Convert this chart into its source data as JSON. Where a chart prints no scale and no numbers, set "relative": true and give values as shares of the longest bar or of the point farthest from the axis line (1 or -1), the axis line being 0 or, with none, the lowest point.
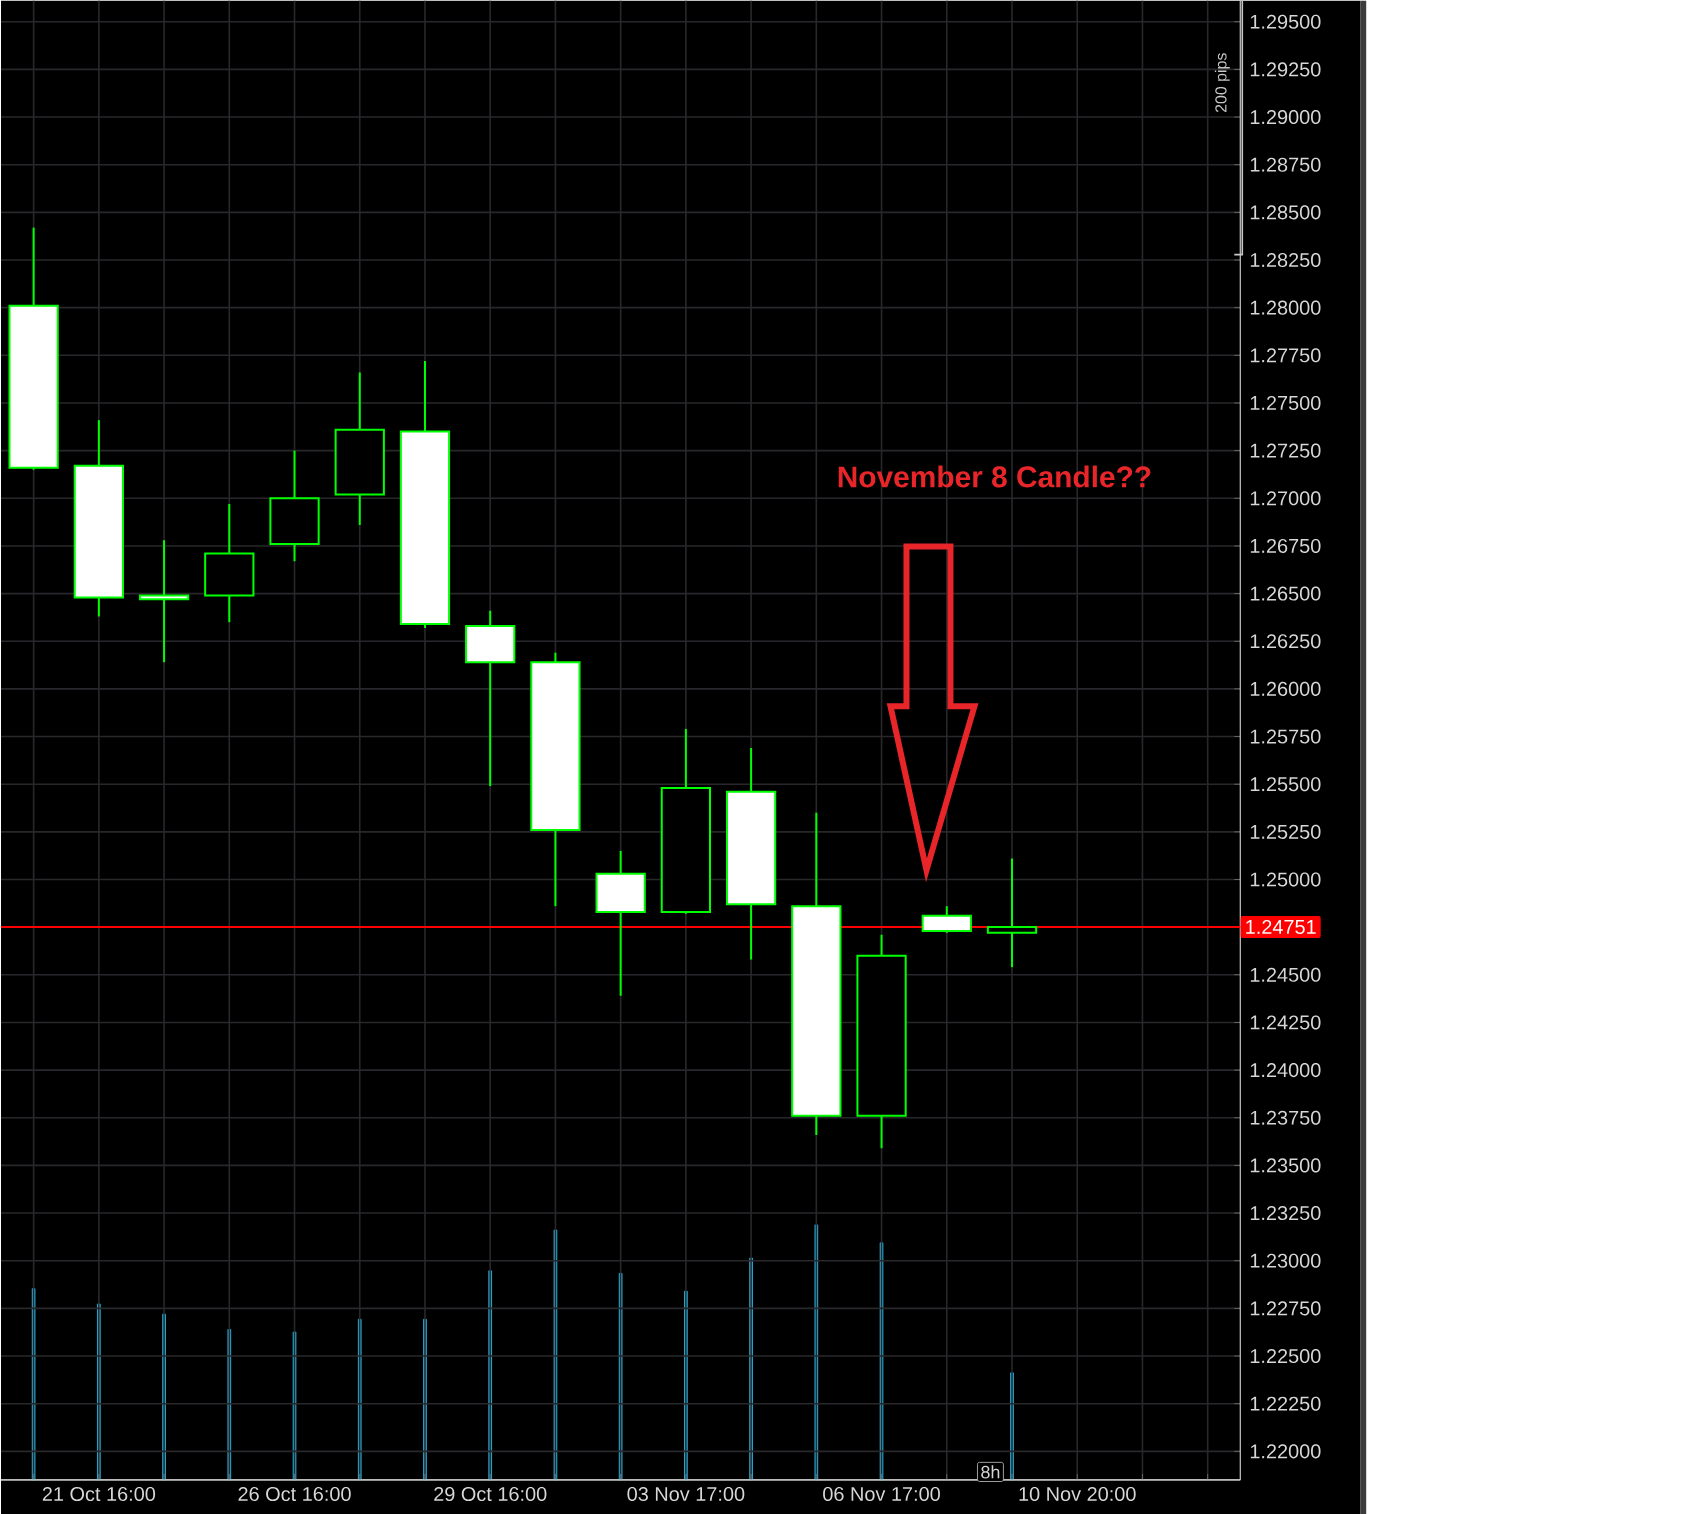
{
  "chart_data": [
    {
      "type": "candlestick",
      "categories": [
        null,
        "21 Oct 16:00",
        null,
        null,
        "26 Oct 16:00",
        null,
        null,
        "29 Oct 16:00",
        null,
        null,
        "03 Nov 17:00",
        null,
        null,
        "06 Nov 17:00",
        null,
        null,
        "10 Nov 20:00",
        null,
        null
      ],
      "ohlc": [
        [
          1.2801,
          1.2842,
          1.2715,
          1.2716
        ],
        [
          1.2717,
          1.2741,
          1.2638,
          1.2648
        ],
        [
          1.2649,
          1.2678,
          1.2614,
          1.2647
        ],
        [
          1.2649,
          1.2697,
          1.2635,
          1.2671
        ],
        [
          1.2676,
          1.2725,
          1.2667,
          1.27
        ],
        [
          1.2702,
          1.2766,
          1.2686,
          1.2736
        ],
        [
          1.2735,
          1.2772,
          1.2632,
          1.2634
        ],
        [
          1.2633,
          1.2641,
          1.2549,
          1.2614
        ],
        [
          1.2614,
          1.2619,
          1.2486,
          1.2526
        ],
        [
          1.2503,
          1.2515,
          1.2439,
          1.2483
        ],
        [
          1.2483,
          1.2579,
          1.2482,
          1.2548
        ],
        [
          1.2546,
          1.2569,
          1.2458,
          1.2487
        ],
        [
          1.2486,
          1.2535,
          1.2366,
          1.2376
        ],
        [
          1.2376,
          1.2471,
          1.2359,
          1.246
        ],
        [
          1.2481,
          1.2486,
          1.2472,
          1.2473
        ],
        [
          1.2472,
          1.2511,
          1.2454,
          1.24751
        ],
        null,
        null,
        null
      ],
      "color": "#00ff00",
      "ylim": [
        1.2185,
        1.2961
      ],
      "yticks": [
        {
          "value": 1.22,
          "label": "1.22000"
        },
        {
          "value": 1.2225,
          "label": "1.22250"
        },
        {
          "value": 1.225,
          "label": "1.22500"
        },
        {
          "value": 1.2275,
          "label": "1.22750"
        },
        {
          "value": 1.23,
          "label": "1.23000"
        },
        {
          "value": 1.2325,
          "label": "1.23250"
        },
        {
          "value": 1.235,
          "label": "1.23500"
        },
        {
          "value": 1.2375,
          "label": "1.23750"
        },
        {
          "value": 1.24,
          "label": "1.24000"
        },
        {
          "value": 1.2425,
          "label": "1.24250"
        },
        {
          "value": 1.245,
          "label": "1.24500"
        },
        {
          "value": 1.2475,
          "label": null
        },
        {
          "value": 1.25,
          "label": "1.25000"
        },
        {
          "value": 1.2525,
          "label": "1.25250"
        },
        {
          "value": 1.255,
          "label": "1.25500"
        },
        {
          "value": 1.2575,
          "label": "1.25750"
        },
        {
          "value": 1.26,
          "label": "1.26000"
        },
        {
          "value": 1.2625,
          "label": "1.26250"
        },
        {
          "value": 1.265,
          "label": "1.26500"
        },
        {
          "value": 1.2675,
          "label": "1.26750"
        },
        {
          "value": 1.27,
          "label": "1.27000"
        },
        {
          "value": 1.2725,
          "label": "1.27250"
        },
        {
          "value": 1.275,
          "label": "1.27500"
        },
        {
          "value": 1.2775,
          "label": "1.27750"
        },
        {
          "value": 1.28,
          "label": "1.28000"
        },
        {
          "value": 1.2825,
          "label": "1.28250"
        },
        {
          "value": 1.285,
          "label": "1.28500"
        },
        {
          "value": 1.2875,
          "label": "1.28750"
        },
        {
          "value": 1.29,
          "label": "1.29000"
        },
        {
          "value": 1.2925,
          "label": "1.29250"
        },
        {
          "value": 1.295,
          "label": "1.29500"
        }
      ],
      "grid": true,
      "ref_lines": [
        {
          "axis": "y",
          "value": 1.24751,
          "label": "1.24751",
          "color": "#ff0000"
        }
      ],
      "annotations": [
        "November 8 Candle??",
        "200 pips",
        "8h"
      ]
    },
    {
      "type": "bar",
      "relative": true,
      "color": "#29b6e6",
      "categories": [
        null,
        null,
        null,
        null,
        null,
        null,
        null,
        null,
        null,
        null,
        null,
        null,
        null,
        null,
        null,
        null,
        null,
        null,
        null
      ],
      "values": [
        0.75,
        0.69,
        0.65,
        0.59,
        0.58,
        0.63,
        0.63,
        0.82,
        0.98,
        0.81,
        0.74,
        0.87,
        1,
        0.93,
        null,
        0.42,
        null,
        null,
        null
      ]
    }
  ]
}
